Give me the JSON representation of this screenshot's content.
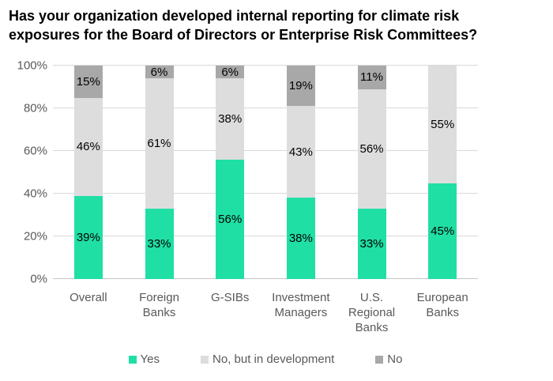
{
  "title": {
    "line1": "Has your organization developed internal reporting for climate risk",
    "line2": "exposures for the Board of Directors or Enterprise Risk Committees?"
  },
  "colors": {
    "yes": "#1fdfa4",
    "no_but_in_development": "#dddddd",
    "no": "#a8a8a8",
    "gridline": "#d9d9d9",
    "axis_text": "#595959",
    "data_label_text": "#000000"
  },
  "chart_data": {
    "type": "bar",
    "stacked": true,
    "title": "Has your organization developed internal reporting for climate risk exposures for the Board of Directors or Enterprise Risk Committees?",
    "categories": [
      "Overall",
      "Foreign Banks",
      "G-SIBs",
      "Investment Managers",
      "U.S. Regional Banks",
      "European Banks"
    ],
    "series": [
      {
        "name": "Yes",
        "color_key": "yes",
        "values": [
          39,
          33,
          56,
          38,
          33,
          45
        ]
      },
      {
        "name": "No, but in development",
        "color_key": "no_but_in_development",
        "values": [
          46,
          61,
          38,
          43,
          56,
          55
        ]
      },
      {
        "name": "No",
        "color_key": "no",
        "values": [
          15,
          6,
          6,
          19,
          11,
          0
        ]
      }
    ],
    "data_label_suffix": "%",
    "xlabel": "",
    "ylabel": "",
    "ylim": [
      0,
      100
    ],
    "y_ticks": [
      0,
      20,
      40,
      60,
      80,
      100
    ],
    "y_tick_suffix": "%",
    "grid": true,
    "legend_position": "bottom"
  }
}
